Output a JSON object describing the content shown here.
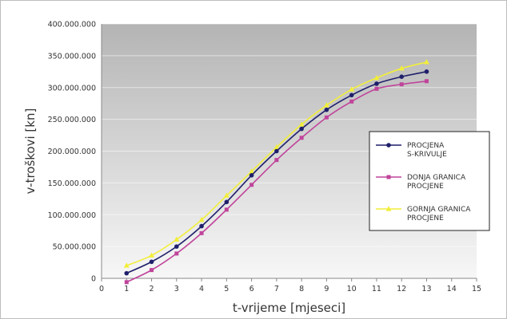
{
  "chart_data": {
    "type": "line",
    "xlabel": "t-vrijeme [mjeseci]",
    "ylabel": "v-troškovi [kn]",
    "xlim": [
      0,
      15
    ],
    "ylim": [
      0,
      400000000
    ],
    "x_ticks": [
      "0",
      "1",
      "2",
      "3",
      "4",
      "5",
      "6",
      "7",
      "8",
      "9",
      "10",
      "11",
      "12",
      "13",
      "14",
      "15"
    ],
    "y_ticks": [
      "0",
      "50.000.000",
      "100.000.000",
      "150.000.000",
      "200.000.000",
      "250.000.000",
      "300.000.000",
      "350.000.000",
      "400.000.000"
    ],
    "x": [
      1,
      2,
      3,
      4,
      5,
      6,
      7,
      8,
      9,
      10,
      11,
      12,
      13
    ],
    "grid": true,
    "legend_position": "right",
    "series": [
      {
        "name_lines": [
          "PROCJENA",
          "S-KRIVULJE"
        ],
        "color": "#1f1f6b",
        "marker": "circle",
        "values": [
          8000000,
          26000000,
          50000000,
          82000000,
          120000000,
          162000000,
          200000000,
          235000000,
          265000000,
          288000000,
          306000000,
          317000000,
          325000000
        ]
      },
      {
        "name_lines": [
          "DONJA GRANICA",
          "PROCJENE"
        ],
        "color": "#c0449b",
        "marker": "square",
        "values": [
          -6000000,
          13000000,
          39000000,
          71000000,
          108000000,
          147000000,
          186000000,
          221000000,
          253000000,
          278000000,
          298000000,
          305000000,
          310000000
        ]
      },
      {
        "name_lines": [
          "GORNJA GRANICA",
          "PROCJENE"
        ],
        "color": "#f2ee3a",
        "marker": "triangle",
        "values": [
          20000000,
          36000000,
          61000000,
          92000000,
          130000000,
          168000000,
          206000000,
          242000000,
          272000000,
          297000000,
          315000000,
          330000000,
          340000000
        ]
      }
    ]
  }
}
